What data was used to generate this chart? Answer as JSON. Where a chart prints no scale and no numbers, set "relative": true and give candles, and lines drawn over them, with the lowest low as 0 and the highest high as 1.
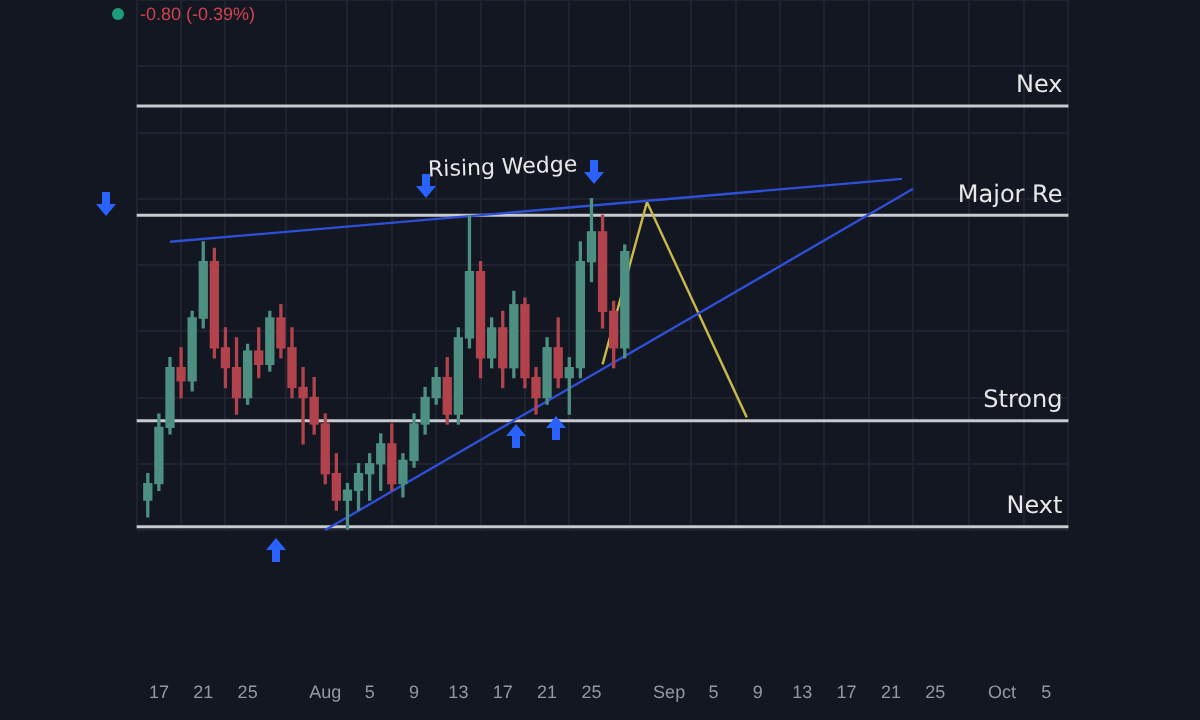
{
  "chart_data": {
    "type": "candlestick",
    "relative": true,
    "grid": true,
    "legend": false,
    "tick_labels": "x",
    "annotations": [
      "-0.80 (-0.39%)",
      "Rising Wedge"
    ],
    "x": [
      "--07-16",
      "--07-17",
      "--07-18",
      "--07-19",
      "--07-20",
      "--07-21",
      "--07-22",
      "--07-23",
      "--07-24",
      "--07-25",
      "--07-26",
      "--07-27",
      "--07-28",
      "--07-29",
      "--07-30",
      "--07-31",
      "--08-01",
      "--08-02",
      "--08-03",
      "--08-04",
      "--08-05",
      "--08-06",
      "--08-07",
      "--08-08",
      "--08-09",
      "--08-10",
      "--08-11",
      "--08-12",
      "--08-13",
      "--08-14",
      "--08-15",
      "--08-16",
      "--08-17",
      "--08-18",
      "--08-19",
      "--08-20",
      "--08-21",
      "--08-22",
      "--08-23",
      "--08-24",
      "--08-25",
      "--08-26",
      "--08-27",
      "--08-28"
    ],
    "ohlc": [
      [
        0.09,
        0.17,
        0.04,
        0.14
      ],
      [
        0.14,
        0.35,
        0.12,
        0.31
      ],
      [
        0.31,
        0.52,
        0.29,
        0.49
      ],
      [
        0.49,
        0.55,
        0.4,
        0.45
      ],
      [
        0.45,
        0.66,
        0.42,
        0.64
      ],
      [
        0.64,
        0.87,
        0.61,
        0.81
      ],
      [
        0.81,
        0.85,
        0.52,
        0.55
      ],
      [
        0.55,
        0.61,
        0.43,
        0.49
      ],
      [
        0.49,
        0.58,
        0.35,
        0.4
      ],
      [
        0.4,
        0.56,
        0.38,
        0.54
      ],
      [
        0.54,
        0.61,
        0.46,
        0.5
      ],
      [
        0.5,
        0.66,
        0.48,
        0.64
      ],
      [
        0.64,
        0.68,
        0.52,
        0.55
      ],
      [
        0.55,
        0.61,
        0.4,
        0.43
      ],
      [
        0.43,
        0.49,
        0.26,
        0.4
      ],
      [
        0.4,
        0.46,
        0.29,
        0.32
      ],
      [
        0.32,
        0.35,
        0.14,
        0.17
      ],
      [
        0.17,
        0.23,
        0.06,
        0.09
      ],
      [
        0.09,
        0.14,
        0,
        0.12
      ],
      [
        0.12,
        0.2,
        0.06,
        0.17
      ],
      [
        0.17,
        0.23,
        0.09,
        0.2
      ],
      [
        0.2,
        0.29,
        0.12,
        0.26
      ],
      [
        0.26,
        0.32,
        0.12,
        0.14
      ],
      [
        0.14,
        0.23,
        0.1,
        0.21
      ],
      [
        0.21,
        0.35,
        0.19,
        0.32
      ],
      [
        0.32,
        0.43,
        0.29,
        0.4
      ],
      [
        0.4,
        0.49,
        0.38,
        0.46
      ],
      [
        0.46,
        0.52,
        0.32,
        0.35
      ],
      [
        0.35,
        0.61,
        0.32,
        0.58
      ],
      [
        0.58,
        0.95,
        0.55,
        0.78
      ],
      [
        0.78,
        0.81,
        0.46,
        0.52
      ],
      [
        0.52,
        0.64,
        0.49,
        0.61
      ],
      [
        0.61,
        0.66,
        0.43,
        0.49
      ],
      [
        0.49,
        0.72,
        0.46,
        0.68
      ],
      [
        0.68,
        0.7,
        0.43,
        0.46
      ],
      [
        0.46,
        0.49,
        0.35,
        0.4
      ],
      [
        0.4,
        0.58,
        0.38,
        0.55
      ],
      [
        0.55,
        0.64,
        0.43,
        0.46
      ],
      [
        0.46,
        0.52,
        0.35,
        0.49
      ],
      [
        0.49,
        0.87,
        0.46,
        0.81
      ],
      [
        0.81,
        1,
        0.75,
        0.9
      ],
      [
        0.9,
        0.95,
        0.61,
        0.66
      ],
      [
        0.66,
        0.69,
        0.49,
        0.55
      ],
      [
        0.55,
        0.86,
        0.52,
        0.84
      ]
    ],
    "series": [
      {
        "type": "line",
        "color": "#2f4fd6",
        "x": [
          "--07-18",
          "--09-22"
        ],
        "values": [
          0.87,
          1.06
        ]
      },
      {
        "type": "line",
        "color": "#2f4fd6",
        "x": [
          "--08-01",
          "--09-23"
        ],
        "values": [
          0,
          1.03
        ]
      },
      {
        "type": "line",
        "color": "#c9b84a",
        "x": [
          "--08-26",
          "--08-30",
          "--09-08"
        ],
        "values": [
          0.5,
          0.99,
          0.34
        ]
      }
    ],
    "ref_lines": [
      {
        "axis": "y",
        "value": 1.28,
        "label": "Nex",
        "color": "#c8cad0"
      },
      {
        "axis": "y",
        "value": 0.95,
        "label": "Major Re",
        "color": "#c8cad0"
      },
      {
        "axis": "y",
        "value": 0.33,
        "label": "Strong",
        "color": "#c8cad0"
      },
      {
        "axis": "y",
        "value": 0.01,
        "label": "Next",
        "color": "#c8cad0"
      }
    ],
    "xlim": [
      "--07-15",
      "--10-07"
    ],
    "xticks": [
      {
        "value": "--07-17",
        "label": "17"
      },
      {
        "value": "--07-21",
        "label": "21"
      },
      {
        "value": "--07-25",
        "label": "25"
      },
      {
        "value": "--08-01",
        "label": "Aug"
      },
      {
        "value": "--08-05",
        "label": "5"
      },
      {
        "value": "--08-09",
        "label": "9"
      },
      {
        "value": "--08-13",
        "label": "13"
      },
      {
        "value": "--08-17",
        "label": "17"
      },
      {
        "value": "--08-21",
        "label": "21"
      },
      {
        "value": "--08-25",
        "label": "25"
      },
      {
        "value": "--09-01",
        "label": "Sep"
      },
      {
        "value": "--09-05",
        "label": "5"
      },
      {
        "value": "--09-09",
        "label": "9"
      },
      {
        "value": "--09-13",
        "label": "13"
      },
      {
        "value": "--09-17",
        "label": "17"
      },
      {
        "value": "--09-21",
        "label": "21"
      },
      {
        "value": "--09-25",
        "label": "25"
      },
      {
        "value": "--10-01",
        "label": "Oct"
      },
      {
        "value": "--10-05",
        "label": "5"
      }
    ]
  }
}
